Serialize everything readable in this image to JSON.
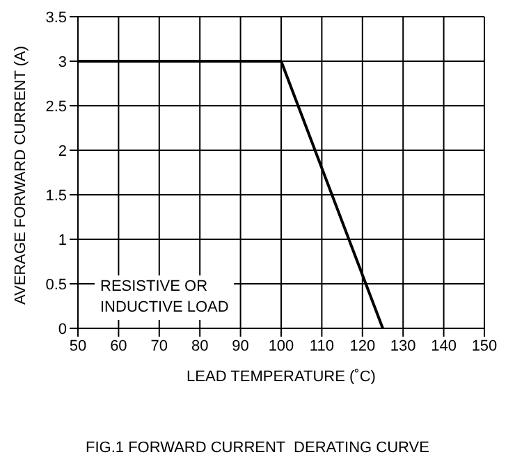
{
  "chart_data": {
    "type": "line",
    "title": "FIG.1 FORWARD CURRENT  DERATING CURVE",
    "xlabel": "LEAD TEMPERATURE (˚C)",
    "ylabel": "AVERAGE FORWARD CURRENT (A)",
    "x": [
      50,
      100,
      125
    ],
    "series": [
      {
        "color": "#000000",
        "values": [
          3,
          3,
          0
        ]
      }
    ],
    "xlim": [
      50,
      150
    ],
    "xticks": [
      50,
      60,
      70,
      80,
      90,
      100,
      110,
      120,
      130,
      140,
      150
    ],
    "ylim": [
      0,
      3.5
    ],
    "yticks": [
      0,
      0.5,
      1,
      1.5,
      2,
      2.5,
      3,
      3.5
    ],
    "grid": true,
    "legend": false,
    "marker": "none",
    "line_style": "solid",
    "annotations": [
      "RESISTIVE OR\nINDUCTIVE LOAD"
    ]
  }
}
